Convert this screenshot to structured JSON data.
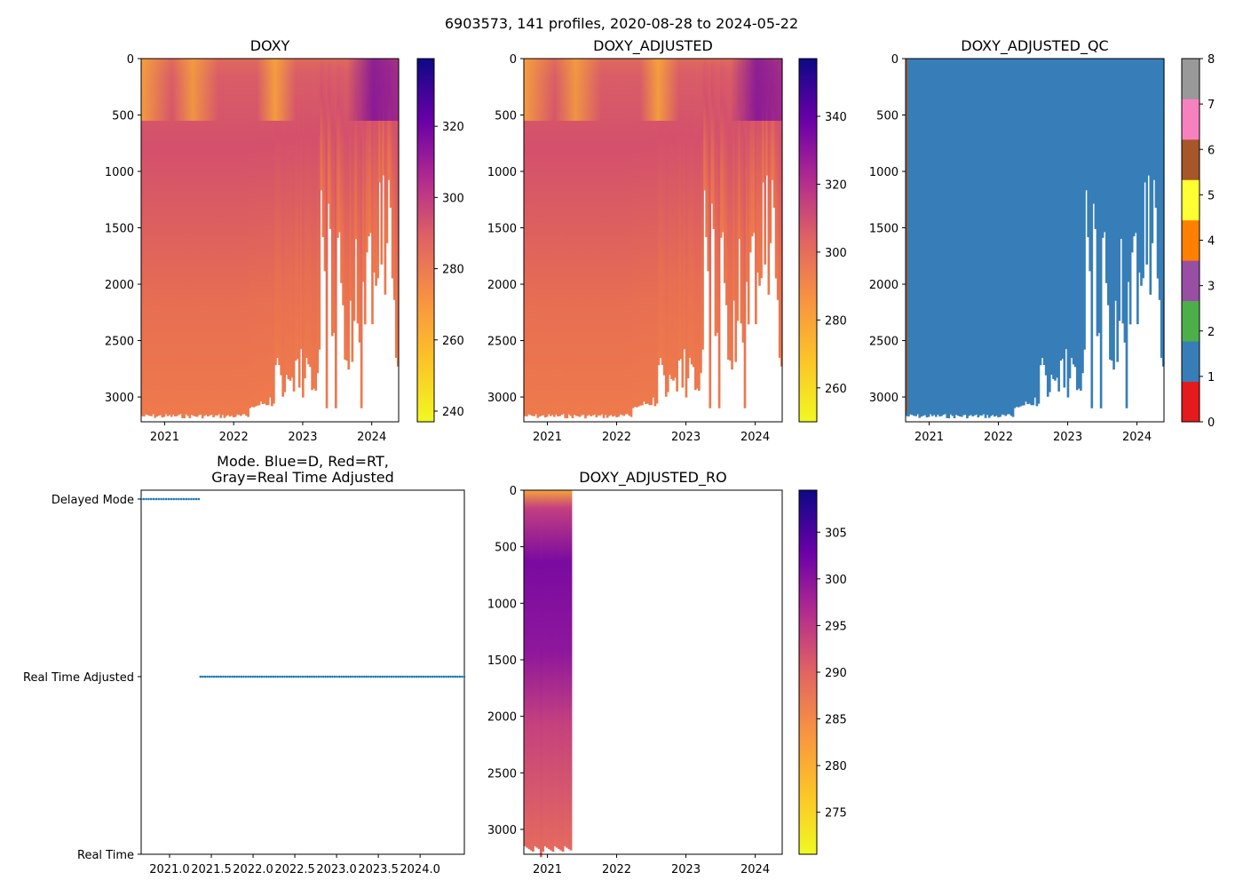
{
  "figure": {
    "suptitle": "6903573, 141 profiles, 2020-08-28 to 2024-05-22"
  },
  "colors": {
    "plasma_r": [
      "#f0f921",
      "#fdc328",
      "#f89540",
      "#e16462",
      "#b12a90",
      "#6a00a8",
      "#0d0887"
    ],
    "qc": [
      "#e41a1c",
      "#377eb8",
      "#4daf4a",
      "#984ea3",
      "#ff7f00",
      "#ffff33",
      "#a65628",
      "#f781bf",
      "#999999"
    ],
    "mode_marker": "#1f77b4"
  },
  "chart_data": [
    {
      "id": "doxy",
      "type": "heatmap",
      "title": "DOXY",
      "x_ticks": [
        "2021",
        "2022",
        "2023",
        "2024"
      ],
      "x_tick_values": [
        2021.0,
        2022.0,
        2023.0,
        2024.0
      ],
      "xlim": [
        2020.66,
        2024.39
      ],
      "y_ticks": [
        "0",
        "500",
        "1000",
        "1500",
        "2000",
        "2500",
        "3000"
      ],
      "y_tick_values": [
        0,
        500,
        1000,
        1500,
        2000,
        2500,
        3000
      ],
      "ylim": [
        3220,
        0
      ],
      "colorbar": {
        "ticks": [
          "240",
          "260",
          "280",
          "300",
          "320"
        ],
        "tick_values": [
          240,
          260,
          280,
          300,
          320
        ],
        "range": [
          237,
          339
        ],
        "cmap": "plasma_r"
      }
    },
    {
      "id": "doxy_adjusted",
      "type": "heatmap",
      "title": "DOXY_ADJUSTED",
      "x_ticks": [
        "2021",
        "2022",
        "2023",
        "2024"
      ],
      "x_tick_values": [
        2021.0,
        2022.0,
        2023.0,
        2024.0
      ],
      "xlim": [
        2020.66,
        2024.39
      ],
      "y_ticks": [
        "0",
        "500",
        "1000",
        "1500",
        "2000",
        "2500",
        "3000"
      ],
      "y_tick_values": [
        0,
        500,
        1000,
        1500,
        2000,
        2500,
        3000
      ],
      "ylim": [
        3220,
        0
      ],
      "colorbar": {
        "ticks": [
          "260",
          "280",
          "300",
          "320",
          "340"
        ],
        "tick_values": [
          260,
          280,
          300,
          320,
          340
        ],
        "range": [
          250,
          357
        ],
        "cmap": "plasma_r"
      }
    },
    {
      "id": "doxy_adjusted_qc",
      "type": "heatmap",
      "title": "DOXY_ADJUSTED_QC",
      "x_ticks": [
        "2021",
        "2022",
        "2023",
        "2024"
      ],
      "x_tick_values": [
        2021.0,
        2022.0,
        2023.0,
        2024.0
      ],
      "xlim": [
        2020.66,
        2024.39
      ],
      "y_ticks": [
        "0",
        "500",
        "1000",
        "1500",
        "2000",
        "2500",
        "3000"
      ],
      "y_tick_values": [
        0,
        500,
        1000,
        1500,
        2000,
        2500,
        3000
      ],
      "ylim": [
        3220,
        0
      ],
      "dominant_flag": 1,
      "colorbar": {
        "ticks": [
          "0",
          "1",
          "2",
          "3",
          "4",
          "5",
          "6",
          "7",
          "8"
        ],
        "tick_values": [
          0,
          1,
          2,
          3,
          4,
          5,
          6,
          7,
          8
        ],
        "range": [
          0,
          8
        ],
        "cmap": "qc"
      }
    },
    {
      "id": "mode",
      "type": "scatter",
      "title_line1": "Mode. Blue=D, Red=RT,",
      "title_line2": "Gray=Real Time Adjusted",
      "x_ticks": [
        "2021.0",
        "2021.5",
        "2022.0",
        "2022.5",
        "2023.0",
        "2023.5",
        "2024.0"
      ],
      "x_tick_values": [
        2021.0,
        2021.5,
        2022.0,
        2022.5,
        2023.0,
        2023.5,
        2024.0
      ],
      "xlim": [
        2020.66,
        2024.53
      ],
      "y_ticks": [
        "Delayed Mode",
        "Real Time Adjusted",
        "Real Time"
      ],
      "y_tick_values": [
        2,
        1,
        0
      ],
      "ylim": [
        0,
        2.05
      ],
      "series": [
        {
          "name": "Delayed Mode",
          "level": 2,
          "x_start": 2020.66,
          "x_end": 2021.35,
          "count": 24
        },
        {
          "name": "Real Time Adjusted",
          "level": 1,
          "x_start": 2021.37,
          "x_end": 2024.53,
          "count": 117
        }
      ]
    },
    {
      "id": "doxy_adjusted_ro",
      "type": "heatmap",
      "title": "DOXY_ADJUSTED_RO",
      "x_ticks": [
        "2021",
        "2022",
        "2023",
        "2024"
      ],
      "x_tick_values": [
        2021.0,
        2022.0,
        2023.0,
        2024.0
      ],
      "xlim": [
        2020.66,
        2024.39
      ],
      "y_ticks": [
        "0",
        "500",
        "1000",
        "1500",
        "2000",
        "2500",
        "3000"
      ],
      "y_tick_values": [
        0,
        500,
        1000,
        1500,
        2000,
        2500,
        3000
      ],
      "ylim": [
        3220,
        0
      ],
      "data_x_end": 2021.35,
      "colorbar": {
        "ticks": [
          "275",
          "280",
          "285",
          "290",
          "295",
          "300",
          "305"
        ],
        "tick_values": [
          275,
          280,
          285,
          290,
          295,
          300,
          305
        ],
        "range": [
          270.5,
          309.5
        ],
        "cmap": "plasma_r"
      }
    }
  ]
}
